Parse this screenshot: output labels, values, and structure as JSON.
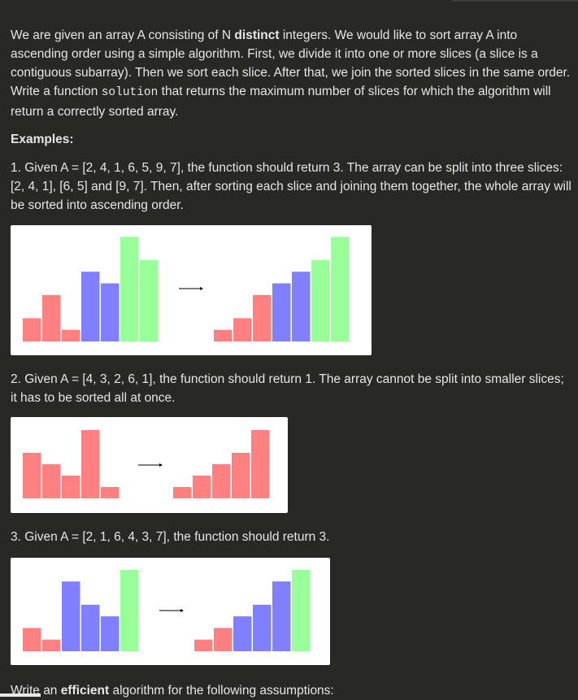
{
  "intro": {
    "part1": "We are given an array A consisting of N ",
    "bold": "distinct",
    "part2": " integers. We would like to sort array A into ascending order using a simple algorithm. First, we divide it into one or more slices (a slice is a contiguous subarray). Then we sort each slice. After that, we join the sorted slices in the same order. Write a function ",
    "code": "solution",
    "part3": " that returns the maximum number of slices for which the algorithm will return a correctly sorted array."
  },
  "examples_heading": "Examples:",
  "examples": [
    {
      "text": "1. Given A = [2, 4, 1, 6, 5, 9, 7], the function should return 3. The array can be split into three slices: [2, 4, 1], [6, 5] and [9, 7]. Then, after sorting each slice and joining them together, the whole array will be sorted into ascending order.",
      "before": [
        {
          "value": 2,
          "color": "#ff8080"
        },
        {
          "value": 4,
          "color": "#ff8080"
        },
        {
          "value": 1,
          "color": "#ff8080"
        },
        {
          "value": 6,
          "color": "#8080ff"
        },
        {
          "value": 5,
          "color": "#8080ff"
        },
        {
          "value": 9,
          "color": "#99ff99"
        },
        {
          "value": 7,
          "color": "#99ff99"
        }
      ],
      "after": [
        {
          "value": 1,
          "color": "#ff8080"
        },
        {
          "value": 2,
          "color": "#ff8080"
        },
        {
          "value": 4,
          "color": "#ff8080"
        },
        {
          "value": 5,
          "color": "#8080ff"
        },
        {
          "value": 6,
          "color": "#8080ff"
        },
        {
          "value": 7,
          "color": "#99ff99"
        },
        {
          "value": 9,
          "color": "#99ff99"
        }
      ]
    },
    {
      "text": "2. Given A = [4, 3, 2, 6, 1], the function should return 1. The array cannot be split into smaller slices; it has to be sorted all at once.",
      "before": [
        {
          "value": 4,
          "color": "#ff8080"
        },
        {
          "value": 3,
          "color": "#ff8080"
        },
        {
          "value": 2,
          "color": "#ff8080"
        },
        {
          "value": 6,
          "color": "#ff8080"
        },
        {
          "value": 1,
          "color": "#ff8080"
        }
      ],
      "after": [
        {
          "value": 1,
          "color": "#ff8080"
        },
        {
          "value": 2,
          "color": "#ff8080"
        },
        {
          "value": 3,
          "color": "#ff8080"
        },
        {
          "value": 4,
          "color": "#ff8080"
        },
        {
          "value": 6,
          "color": "#ff8080"
        }
      ]
    },
    {
      "text": "3. Given A = [2, 1, 6, 4, 3, 7], the function should return 3.",
      "before": [
        {
          "value": 2,
          "color": "#ff8080"
        },
        {
          "value": 1,
          "color": "#ff8080"
        },
        {
          "value": 6,
          "color": "#8080ff"
        },
        {
          "value": 4,
          "color": "#8080ff"
        },
        {
          "value": 3,
          "color": "#8080ff"
        },
        {
          "value": 7,
          "color": "#99ff99"
        }
      ],
      "after": [
        {
          "value": 1,
          "color": "#ff8080"
        },
        {
          "value": 2,
          "color": "#ff8080"
        },
        {
          "value": 3,
          "color": "#8080ff"
        },
        {
          "value": 4,
          "color": "#8080ff"
        },
        {
          "value": 6,
          "color": "#8080ff"
        },
        {
          "value": 7,
          "color": "#99ff99"
        }
      ]
    }
  ],
  "footer": {
    "part1": "Write an ",
    "bold": "efficient",
    "part2": " algorithm for the following assumptions:"
  },
  "colors": {
    "background": "#282825",
    "text": "#e6e6e4",
    "arrow": "#000000"
  }
}
